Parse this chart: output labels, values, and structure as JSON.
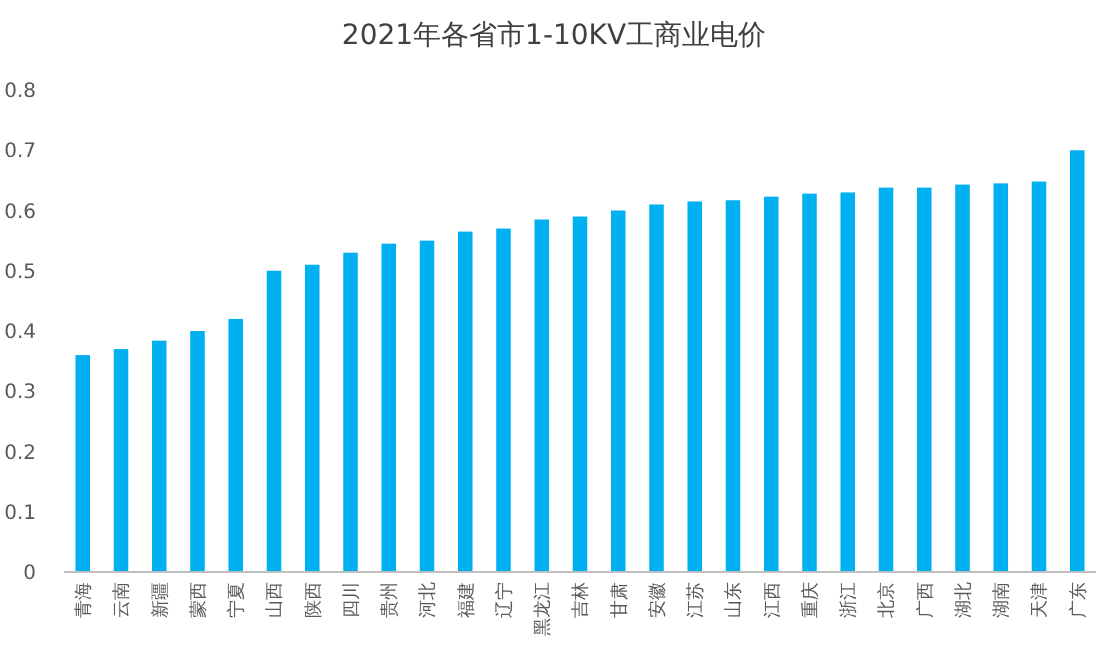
{
  "chart_data": {
    "type": "bar",
    "title": "2021年各省市1-10KV工商业电价",
    "categories": [
      "青海",
      "云南",
      "新疆",
      "蒙西",
      "宁夏",
      "山西",
      "陕西",
      "四川",
      "贵州",
      "河北",
      "福建",
      "辽宁",
      "黑龙江",
      "吉林",
      "甘肃",
      "安徽",
      "江苏",
      "山东",
      "江西",
      "重庆",
      "浙江",
      "北京",
      "广西",
      "湖北",
      "湖南",
      "天津",
      "广东"
    ],
    "values": [
      0.36,
      0.37,
      0.384,
      0.4,
      0.42,
      0.5,
      0.51,
      0.53,
      0.545,
      0.55,
      0.565,
      0.57,
      0.585,
      0.59,
      0.6,
      0.61,
      0.615,
      0.617,
      0.623,
      0.628,
      0.63,
      0.638,
      0.638,
      0.643,
      0.645,
      0.648,
      0.7
    ],
    "color": "#00b0f0",
    "ylim": [
      0,
      0.8
    ],
    "yticks": [
      0,
      0.1,
      0.2,
      0.3,
      0.4,
      0.5,
      0.6,
      0.7,
      0.8
    ],
    "grid": false
  }
}
